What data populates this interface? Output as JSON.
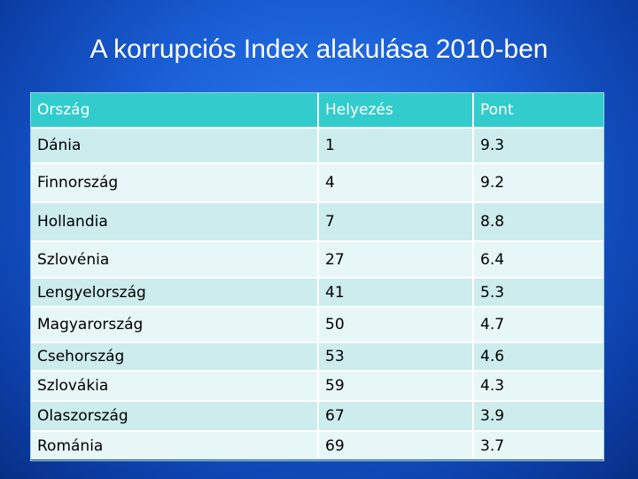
{
  "title": "A korrupciós Index alakulása 2010-ben",
  "table": {
    "headers": [
      "Ország",
      "Helyezés",
      "Pont"
    ],
    "rows": [
      [
        "Dánia",
        "1",
        "9.3"
      ],
      [
        "Finnország",
        "4",
        "9.2"
      ],
      [
        "Hollandia",
        "7",
        "8.8"
      ],
      [
        "Szlovénia",
        "27",
        "6.4"
      ],
      [
        "Lengyelország",
        "41",
        "5.3"
      ],
      [
        "Magyarország",
        "50",
        "4.7"
      ],
      [
        "Csehország",
        "53",
        "4.6"
      ],
      [
        "Szlovákia",
        "59",
        "4.3"
      ],
      [
        "Olaszország",
        "67",
        "3.9"
      ],
      [
        "Románia",
        "69",
        "3.7"
      ]
    ]
  },
  "colors": {
    "header_bg": "#33cccc",
    "row_odd_bg": "#cdeced",
    "row_even_bg": "#e7f6f6",
    "background": "#1a5fd6"
  }
}
